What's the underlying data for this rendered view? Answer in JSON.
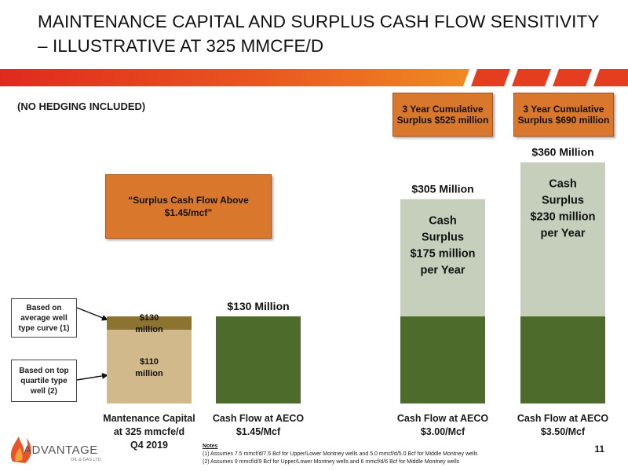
{
  "title": "MAINTENANCE CAPITAL AND SURPLUS CASH FLOW SENSITIVITY – ILLUSTRATIVE AT 325 MMCFE/D",
  "subtitle": "(NO HEDGING INCLUDED)",
  "colors": {
    "olive": "#4d6b2a",
    "light_green": "#c6cfbb",
    "tan": "#d1b98c",
    "brown": "#8c7330",
    "orange": "#d9782c",
    "red": "#e02a1e"
  },
  "callouts": {
    "cum_3_00": "3 Year Cumulative Surplus $525 million",
    "cum_3_50": "3 Year Cumulative Surplus $690 million",
    "surplus_above": "“Surplus Cash Flow Above $1.45/mcf”",
    "avg_well": "Based on average well type curve (1)",
    "top_quartile": "Based on top quartile type well (2)"
  },
  "chart_data": {
    "type": "bar",
    "unit": "$ million",
    "categories": [
      "Mantenance Capital at 325 mmcfe/d Q4 2019",
      "Cash Flow at AECO $1.45/Mcf",
      "Cash Flow at AECO $3.00/Mcf",
      "Cash Flow at AECO $3.50/Mcf"
    ],
    "bars": [
      {
        "total_label": "",
        "segments": [
          {
            "value": 110,
            "label": "$110 million",
            "color": "#d1b98c"
          },
          {
            "value": 20,
            "label": "$130 million",
            "color": "#8c7330"
          }
        ]
      },
      {
        "total_label": "$130 Million",
        "segments": [
          {
            "value": 130,
            "label": "",
            "color": "#4d6b2a"
          }
        ]
      },
      {
        "total_label": "$305 Million",
        "segments": [
          {
            "value": 130,
            "label": "",
            "color": "#4d6b2a"
          },
          {
            "value": 175,
            "label": "Cash Surplus $175 million per Year",
            "color": "#c6cfbb"
          }
        ]
      },
      {
        "total_label": "$360 Million",
        "segments": [
          {
            "value": 130,
            "label": "",
            "color": "#4d6b2a"
          },
          {
            "value": 230,
            "label": "Cash Surplus $230 million per Year",
            "color": "#c6cfbb"
          }
        ]
      }
    ]
  },
  "notes": {
    "heading": "Notes",
    "n1": "(1) Assumes 7.5 mmcf/d/7.5 Bcf for Upper/Lower Montney wells and 5.0 mmcf/d/5.0 Bcf for Middle Montney wells",
    "n2": "(2) Assumes 9 mmcf/d/9 Bcf for Upper/Lower Montney wells and 6 mmcf/d/6 Bcf for Middle Montney wells"
  },
  "page_number": "11",
  "logo": {
    "name": "ADVANTAGE",
    "sub": "OIL & GAS LTD."
  }
}
